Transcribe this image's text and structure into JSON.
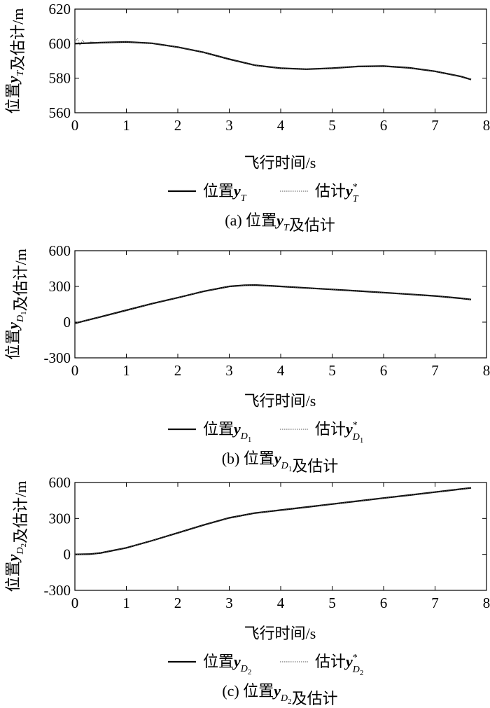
{
  "chart_data": [
    {
      "type": "line",
      "panel_label": "(a)",
      "caption_text": "位置",
      "caption_var": "y",
      "caption_sub": "T",
      "caption_subsub": "",
      "caption_tail": "及估计",
      "ylabel_text": "位置",
      "ylabel_var": "y",
      "ylabel_sub": "T",
      "ylabel_subsub": "",
      "ylabel_tail": "及估计/m",
      "xlabel": "飞行时间/s",
      "xlim": [
        0,
        8
      ],
      "ylim": [
        560,
        620
      ],
      "xticks": [
        0,
        1,
        2,
        3,
        4,
        5,
        6,
        7,
        8
      ],
      "yticks": [
        560,
        580,
        600,
        620
      ],
      "legend_true_text": "位置",
      "legend_true_var": "y",
      "legend_true_sub": "T",
      "legend_true_subsub": "",
      "legend_est_text": "估计",
      "legend_est_var": "y",
      "legend_est_sup": "*",
      "legend_est_sub": "T",
      "legend_est_subsub": "",
      "series": [
        {
          "role": "true",
          "x": [
            0,
            0.5,
            1.0,
            1.5,
            2.0,
            2.5,
            3.0,
            3.5,
            4.0,
            4.5,
            5.0,
            5.5,
            6.0,
            6.5,
            7.0,
            7.5,
            7.7
          ],
          "y": [
            600,
            600.6,
            601,
            600.2,
            598,
            595,
            591,
            587.5,
            585.8,
            585.2,
            585.8,
            586.8,
            587,
            586,
            584,
            581,
            579.2
          ]
        },
        {
          "role": "estimate",
          "x": [
            0,
            0.05,
            0.1,
            0.15,
            0.2,
            0.3,
            0.5,
            1.0,
            1.5,
            2.0,
            2.5,
            3.0,
            3.5,
            4.0,
            4.5,
            5.0,
            5.5,
            6.0,
            6.5,
            7.0,
            7.5,
            7.7
          ],
          "y": [
            601,
            603,
            599,
            602,
            600,
            601,
            600.6,
            601,
            600.2,
            598,
            595,
            591,
            587.5,
            585.8,
            585.2,
            585.8,
            586.8,
            587,
            586,
            584,
            581,
            579.2
          ]
        }
      ]
    },
    {
      "type": "line",
      "panel_label": "(b)",
      "caption_text": "位置",
      "caption_var": "y",
      "caption_sub": "D",
      "caption_subsub": "1",
      "caption_tail": "及估计",
      "ylabel_text": "位置",
      "ylabel_var": "y",
      "ylabel_sub": "D",
      "ylabel_subsub": "1",
      "ylabel_tail": "及估计/m",
      "xlabel": "飞行时间/s",
      "xlim": [
        0,
        8
      ],
      "ylim": [
        -300,
        600
      ],
      "xticks": [
        0,
        1,
        2,
        3,
        4,
        5,
        6,
        7,
        8
      ],
      "yticks": [
        -300,
        0,
        300,
        600
      ],
      "legend_true_text": "位置",
      "legend_true_var": "y",
      "legend_true_sub": "D",
      "legend_true_subsub": "1",
      "legend_est_text": "估计",
      "legend_est_var": "y",
      "legend_est_sup": "*",
      "legend_est_sub": "D",
      "legend_est_subsub": "1",
      "series": [
        {
          "role": "true",
          "x": [
            0,
            0.5,
            1.0,
            1.5,
            2.0,
            2.5,
            3.0,
            3.3,
            3.5,
            4.0,
            4.5,
            5.0,
            5.5,
            6.0,
            6.5,
            7.0,
            7.5,
            7.7
          ],
          "y": [
            -10,
            45,
            100,
            155,
            205,
            258,
            300,
            310,
            312,
            300,
            287,
            275,
            262,
            248,
            234,
            220,
            200,
            190
          ]
        },
        {
          "role": "estimate",
          "x": [
            0,
            0.05,
            0.1,
            0.5,
            1.0,
            1.5,
            2.0,
            2.5,
            3.0,
            3.3,
            3.5,
            4.0,
            4.5,
            5.0,
            5.5,
            6.0,
            6.5,
            7.0,
            7.5,
            7.7
          ],
          "y": [
            -8,
            -2,
            2,
            45,
            100,
            155,
            205,
            258,
            300,
            310,
            312,
            300,
            287,
            275,
            262,
            248,
            234,
            220,
            200,
            190
          ]
        }
      ]
    },
    {
      "type": "line",
      "panel_label": "(c)",
      "caption_text": "位置",
      "caption_var": "y",
      "caption_sub": "D",
      "caption_subsub": "2",
      "caption_tail": "及估计",
      "ylabel_text": "位置",
      "ylabel_var": "y",
      "ylabel_sub": "D",
      "ylabel_subsub": "2",
      "ylabel_tail": "及估计/m",
      "xlabel": "飞行时间/s",
      "xlim": [
        0,
        8
      ],
      "ylim": [
        -300,
        600
      ],
      "xticks": [
        0,
        1,
        2,
        3,
        4,
        5,
        6,
        7,
        8
      ],
      "yticks": [
        -300,
        0,
        300,
        600
      ],
      "legend_true_text": "位置",
      "legend_true_var": "y",
      "legend_true_sub": "D",
      "legend_true_subsub": "2",
      "legend_est_text": "估计",
      "legend_est_var": "y",
      "legend_est_sup": "*",
      "legend_est_sub": "D",
      "legend_est_subsub": "2",
      "series": [
        {
          "role": "true",
          "x": [
            0,
            0.3,
            0.5,
            1.0,
            1.5,
            2.0,
            2.5,
            3.0,
            3.5,
            4.0,
            4.5,
            5.0,
            5.5,
            6.0,
            6.5,
            7.0,
            7.5,
            7.7
          ],
          "y": [
            0,
            3,
            12,
            55,
            115,
            180,
            245,
            305,
            345,
            370,
            395,
            420,
            445,
            470,
            495,
            520,
            545,
            555
          ]
        },
        {
          "role": "estimate",
          "x": [
            0,
            0.3,
            0.5,
            1.0,
            1.5,
            2.0,
            2.5,
            3.0,
            3.5,
            4.0,
            4.5,
            5.0,
            5.5,
            6.0,
            6.5,
            7.0,
            7.5,
            7.7
          ],
          "y": [
            0,
            3,
            12,
            55,
            115,
            180,
            245,
            305,
            345,
            370,
            395,
            420,
            445,
            470,
            495,
            520,
            545,
            555
          ]
        }
      ]
    }
  ]
}
